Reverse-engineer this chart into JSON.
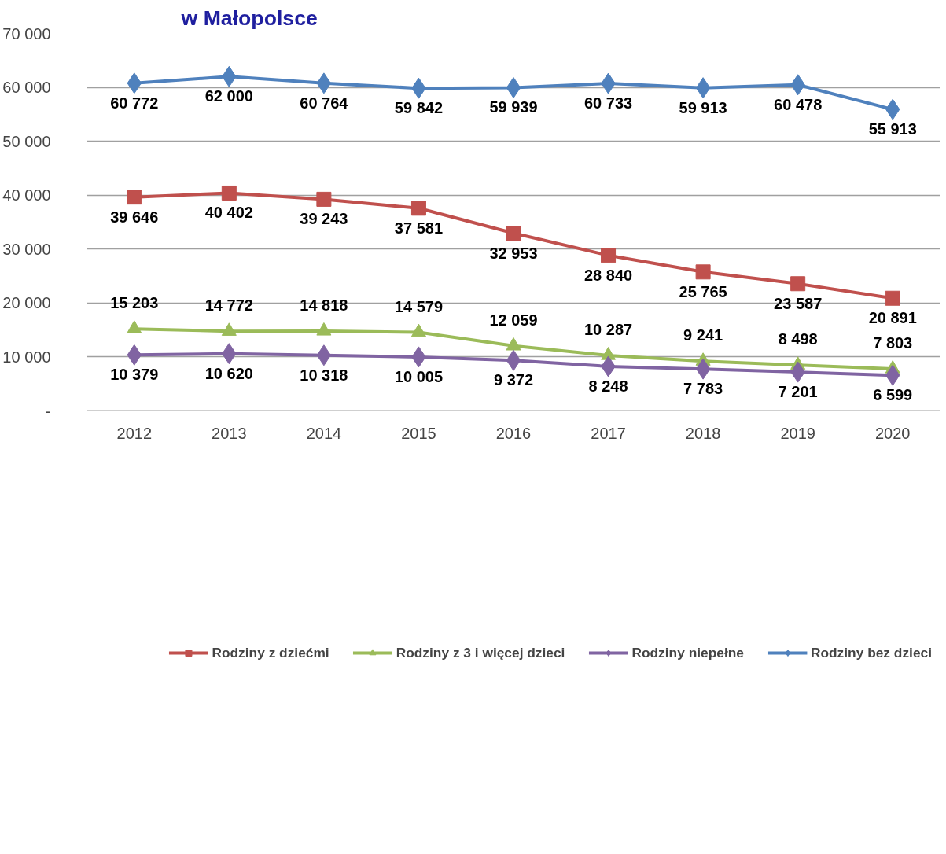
{
  "chart_data": {
    "type": "line",
    "title": "w Małopolsce",
    "categories": [
      "2012",
      "2013",
      "2014",
      "2015",
      "2016",
      "2017",
      "2018",
      "2019",
      "2020"
    ],
    "series": [
      {
        "name": "Rodziny z dziećmi",
        "color": "#c0504d",
        "marker": "square",
        "values": [
          39646,
          40402,
          39243,
          37581,
          32953,
          28840,
          25765,
          23587,
          20891
        ]
      },
      {
        "name": "Rodziny z 3 i więcej dzieci",
        "color": "#9bbb59",
        "marker": "triangle",
        "values": [
          15203,
          14772,
          14818,
          14579,
          12059,
          10287,
          9241,
          8498,
          7803
        ]
      },
      {
        "name": "Rodziny niepełne",
        "color": "#8064a2",
        "marker": "diamond",
        "values": [
          10379,
          10620,
          10318,
          10005,
          9372,
          8248,
          7783,
          7201,
          6599
        ]
      },
      {
        "name": "Rodziny bez dzieci",
        "color": "#4f81bd",
        "marker": "diamond",
        "values": [
          60772,
          62000,
          60764,
          59842,
          59939,
          60733,
          59913,
          60478,
          55913
        ]
      }
    ],
    "ylim": [
      0,
      70000
    ],
    "yticks": [
      {
        "value": 0,
        "label": "-"
      },
      {
        "value": 10000,
        "label": "10 000"
      },
      {
        "value": 20000,
        "label": "20 000"
      },
      {
        "value": 30000,
        "label": "30 000"
      },
      {
        "value": 40000,
        "label": "40 000"
      },
      {
        "value": 50000,
        "label": "50 000"
      },
      {
        "value": 60000,
        "label": "60 000"
      },
      {
        "value": 70000,
        "label": "70 000"
      }
    ],
    "grid": "y",
    "legend": "bottom",
    "data_labels": true,
    "line_style": "solid"
  }
}
